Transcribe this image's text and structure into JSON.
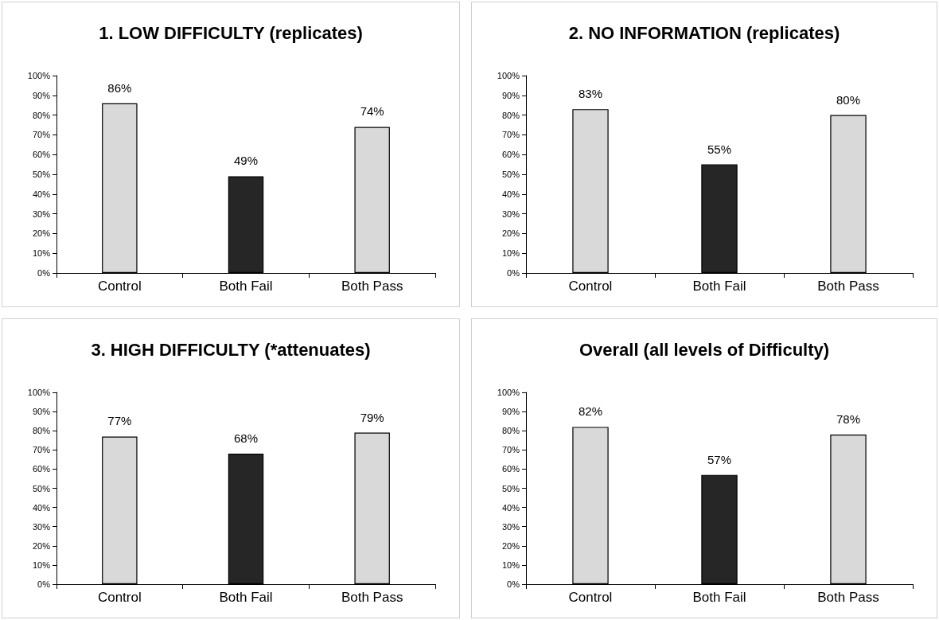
{
  "chart_data": [
    {
      "type": "bar",
      "title": "1. LOW DIFFICULTY (replicates)",
      "categories": [
        "Control",
        "Both Fail",
        "Both Pass"
      ],
      "values": [
        86,
        49,
        74
      ],
      "colors": [
        "#d9d9d9",
        "#262626",
        "#d9d9d9"
      ],
      "value_labels": [
        "86%",
        "49%",
        "74%"
      ],
      "ylim": [
        0,
        100
      ],
      "yticks": [
        {
          "value": 0,
          "label": "0%"
        },
        {
          "value": 10,
          "label": "10%"
        },
        {
          "value": 20,
          "label": "20%"
        },
        {
          "value": 30,
          "label": "30%"
        },
        {
          "value": 40,
          "label": "40%"
        },
        {
          "value": 50,
          "label": "50%"
        },
        {
          "value": 60,
          "label": "60%"
        },
        {
          "value": 70,
          "label": "70%"
        },
        {
          "value": 80,
          "label": "80%"
        },
        {
          "value": 90,
          "label": "90%"
        },
        {
          "value": 100,
          "label": "100%"
        }
      ]
    },
    {
      "type": "bar",
      "title": "2. NO INFORMATION (replicates)",
      "categories": [
        "Control",
        "Both Fail",
        "Both Pass"
      ],
      "values": [
        83,
        55,
        80
      ],
      "colors": [
        "#d9d9d9",
        "#262626",
        "#d9d9d9"
      ],
      "value_labels": [
        "83%",
        "55%",
        "80%"
      ],
      "ylim": [
        0,
        100
      ],
      "yticks": [
        {
          "value": 0,
          "label": "0%"
        },
        {
          "value": 10,
          "label": "10%"
        },
        {
          "value": 20,
          "label": "20%"
        },
        {
          "value": 30,
          "label": "30%"
        },
        {
          "value": 40,
          "label": "40%"
        },
        {
          "value": 50,
          "label": "50%"
        },
        {
          "value": 60,
          "label": "60%"
        },
        {
          "value": 70,
          "label": "70%"
        },
        {
          "value": 80,
          "label": "80%"
        },
        {
          "value": 90,
          "label": "90%"
        },
        {
          "value": 100,
          "label": "100%"
        }
      ]
    },
    {
      "type": "bar",
      "title": "3. HIGH DIFFICULTY (*attenuates)",
      "categories": [
        "Control",
        "Both Fail",
        "Both Pass"
      ],
      "values": [
        77,
        68,
        79
      ],
      "colors": [
        "#d9d9d9",
        "#262626",
        "#d9d9d9"
      ],
      "value_labels": [
        "77%",
        "68%",
        "79%"
      ],
      "ylim": [
        0,
        100
      ],
      "yticks": [
        {
          "value": 0,
          "label": "0%"
        },
        {
          "value": 10,
          "label": "10%"
        },
        {
          "value": 20,
          "label": "20%"
        },
        {
          "value": 30,
          "label": "30%"
        },
        {
          "value": 40,
          "label": "40%"
        },
        {
          "value": 50,
          "label": "50%"
        },
        {
          "value": 60,
          "label": "60%"
        },
        {
          "value": 70,
          "label": "70%"
        },
        {
          "value": 80,
          "label": "80%"
        },
        {
          "value": 90,
          "label": "90%"
        },
        {
          "value": 100,
          "label": "100%"
        }
      ]
    },
    {
      "type": "bar",
      "title": "Overall (all levels of Difficulty)",
      "categories": [
        "Control",
        "Both Fail",
        "Both Pass"
      ],
      "values": [
        82,
        57,
        78
      ],
      "colors": [
        "#d9d9d9",
        "#262626",
        "#d9d9d9"
      ],
      "value_labels": [
        "82%",
        "57%",
        "78%"
      ],
      "ylim": [
        0,
        100
      ],
      "yticks": [
        {
          "value": 0,
          "label": "0%"
        },
        {
          "value": 10,
          "label": "10%"
        },
        {
          "value": 20,
          "label": "20%"
        },
        {
          "value": 30,
          "label": "30%"
        },
        {
          "value": 40,
          "label": "40%"
        },
        {
          "value": 50,
          "label": "50%"
        },
        {
          "value": 60,
          "label": "60%"
        },
        {
          "value": 70,
          "label": "70%"
        },
        {
          "value": 80,
          "label": "80%"
        },
        {
          "value": 90,
          "label": "90%"
        },
        {
          "value": 100,
          "label": "100%"
        }
      ]
    }
  ]
}
